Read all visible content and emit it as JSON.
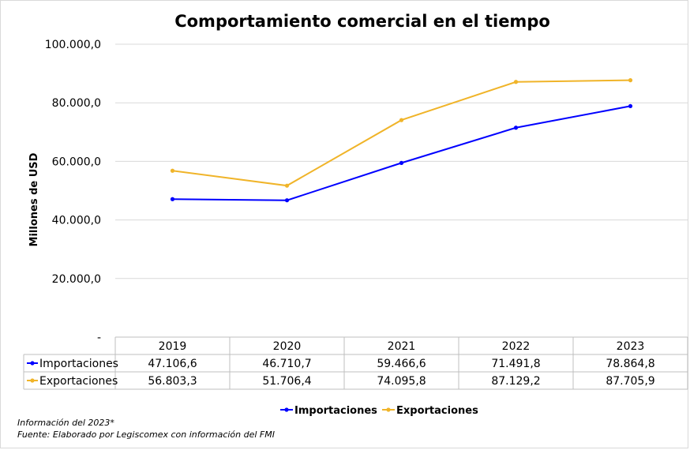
{
  "chart_data": {
    "type": "line",
    "title": "Comportamiento comercial en el tiempo",
    "ylabel": "Millones de USD",
    "xlabel": "",
    "ylim": [
      0,
      100000
    ],
    "y_ticks": [
      "-",
      "20.000,0",
      "40.000,0",
      "60.000,0",
      "80.000,0",
      "100.000,0"
    ],
    "grid": true,
    "legend": "bottom",
    "categories": [
      "2019",
      "2020",
      "2021",
      "2022",
      "2023"
    ],
    "series": [
      {
        "name": "Importaciones",
        "color": "#0000ff",
        "values": [
          47106.6,
          46710.7,
          59466.6,
          71491.8,
          78864.8
        ],
        "labels": [
          "47.106,6",
          "46.710,7",
          "59.466,6",
          "71.491,8",
          "78.864,8"
        ]
      },
      {
        "name": "Exportaciones",
        "color": "#f0b429",
        "values": [
          56803.3,
          51706.4,
          74095.8,
          87129.2,
          87705.9
        ],
        "labels": [
          "56.803,3",
          "51.706,4",
          "74.095,8",
          "87.129,2",
          "87.705,9"
        ]
      }
    ]
  },
  "notes": {
    "line1": "Información del 2023*",
    "line2": "Fuente: Elaborado por Legiscomex con información del FMI"
  }
}
